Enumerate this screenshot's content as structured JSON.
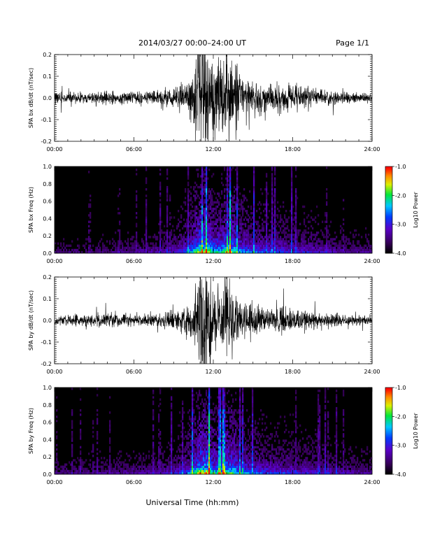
{
  "header": {
    "date_range": "2014/03/27  00:00–24:00 UT",
    "page": "Page 1/1"
  },
  "chart_data": [
    {
      "type": "line",
      "ylabel": "SPA bx dB/dt (nT/sec)",
      "xlim": [
        0,
        24
      ],
      "ylim": [
        -0.2,
        0.2
      ],
      "x_ticks": [
        "00:00",
        "06:00",
        "12:00",
        "18:00",
        "24:00"
      ],
      "y_ticks": [
        "-0.2",
        "-0.1",
        "0.0",
        "0.1",
        "0.2"
      ],
      "series": [
        {
          "envelope_hours": [
            0,
            1,
            2,
            3,
            4,
            5,
            6,
            7,
            8,
            9,
            10,
            10.5,
            11,
            11.5,
            12,
            12.5,
            13,
            13.5,
            14,
            15,
            16,
            17,
            18,
            19,
            20,
            21,
            22,
            23,
            24
          ],
          "envelope_amplitude": [
            0.03,
            0.03,
            0.025,
            0.03,
            0.035,
            0.03,
            0.03,
            0.035,
            0.04,
            0.05,
            0.08,
            0.12,
            0.3,
            0.3,
            0.2,
            0.15,
            0.25,
            0.2,
            0.12,
            0.08,
            0.07,
            0.08,
            0.06,
            0.05,
            0.04,
            0.035,
            0.03,
            0.025,
            0.02
          ]
        }
      ]
    },
    {
      "type": "heatmap",
      "ylabel": "SPA bx Freq (Hz)",
      "xlim": [
        0,
        24
      ],
      "ylim": [
        0.0,
        1.0
      ],
      "x_ticks": [
        "00:00",
        "06:00",
        "12:00",
        "18:00",
        "24:00"
      ],
      "y_ticks": [
        "0.0",
        "0.2",
        "0.4",
        "0.6",
        "0.8",
        "1.0"
      ],
      "colorbar": {
        "label": "Log10 Power",
        "range": [
          -4.0,
          -1.0
        ],
        "ticks": [
          "-1.0",
          "-2.0",
          "-3.0",
          "-4.0"
        ]
      },
      "activity_hours": [
        0,
        2,
        4,
        6,
        8,
        9,
        10,
        10.5,
        11,
        11.5,
        12,
        12.5,
        13,
        13.5,
        14,
        15,
        16,
        17,
        18,
        20,
        22,
        24
      ],
      "activity_level": [
        0.15,
        0.15,
        0.18,
        0.2,
        0.25,
        0.3,
        0.45,
        0.6,
        0.85,
        0.8,
        0.65,
        0.6,
        0.75,
        0.7,
        0.55,
        0.45,
        0.4,
        0.4,
        0.35,
        0.3,
        0.22,
        0.2
      ]
    },
    {
      "type": "line",
      "ylabel": "SPA by dB/dt (nT/sec)",
      "xlim": [
        0,
        24
      ],
      "ylim": [
        -0.2,
        0.2
      ],
      "x_ticks": [
        "00:00",
        "06:00",
        "12:00",
        "18:00",
        "24:00"
      ],
      "y_ticks": [
        "-0.2",
        "-0.1",
        "0.0",
        "0.1",
        "0.2"
      ],
      "series": [
        {
          "envelope_hours": [
            0,
            1,
            2,
            3,
            4,
            5,
            6,
            7,
            8,
            9,
            10,
            10.5,
            11,
            11.5,
            12,
            12.5,
            13,
            13.5,
            14,
            15,
            16,
            17,
            18,
            19,
            20,
            21,
            22,
            23,
            24
          ],
          "envelope_amplitude": [
            0.025,
            0.025,
            0.03,
            0.035,
            0.04,
            0.035,
            0.03,
            0.035,
            0.04,
            0.05,
            0.07,
            0.1,
            0.3,
            0.3,
            0.15,
            0.12,
            0.22,
            0.15,
            0.1,
            0.08,
            0.07,
            0.07,
            0.06,
            0.05,
            0.04,
            0.035,
            0.03,
            0.025,
            0.02
          ]
        }
      ]
    },
    {
      "type": "heatmap",
      "ylabel": "SPA by Freq (Hz)",
      "xlim": [
        0,
        24
      ],
      "ylim": [
        0.0,
        1.0
      ],
      "x_ticks": [
        "00:00",
        "06:00",
        "12:00",
        "18:00",
        "24:00"
      ],
      "y_ticks": [
        "0.0",
        "0.2",
        "0.4",
        "0.6",
        "0.8",
        "1.0"
      ],
      "colorbar": {
        "label": "Log10 Power",
        "range": [
          -4.0,
          -1.0
        ],
        "ticks": [
          "-1.0",
          "-2.0",
          "-3.0",
          "-4.0"
        ]
      },
      "activity_hours": [
        0,
        2,
        4,
        6,
        8,
        9,
        10,
        10.5,
        11,
        11.5,
        12,
        12.5,
        13,
        13.5,
        14,
        15,
        16,
        17,
        18,
        20,
        22,
        24
      ],
      "activity_level": [
        0.18,
        0.18,
        0.2,
        0.22,
        0.25,
        0.3,
        0.45,
        0.6,
        0.85,
        0.85,
        0.65,
        0.6,
        0.75,
        0.7,
        0.55,
        0.45,
        0.4,
        0.4,
        0.35,
        0.3,
        0.25,
        0.22
      ]
    }
  ],
  "footer": {
    "xlabel": "Universal Time (hh:mm)"
  }
}
